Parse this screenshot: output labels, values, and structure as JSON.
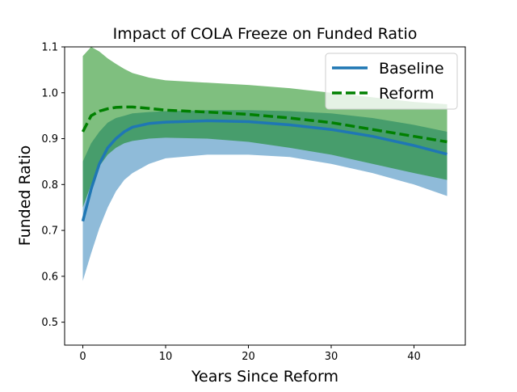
{
  "chart_data": {
    "type": "line",
    "title": "Impact of COLA Freeze on Funded Ratio",
    "xlabel": "Years Since Reform",
    "ylabel": "Funded Ratio",
    "xlim": [
      -2.2,
      46.2
    ],
    "ylim": [
      0.45,
      1.1
    ],
    "xticks": [
      0,
      10,
      20,
      30,
      40
    ],
    "yticks": [
      0.5,
      0.6,
      0.7,
      0.8,
      0.9,
      1.0,
      1.1
    ],
    "xtick_labels": [
      "0",
      "10",
      "20",
      "30",
      "40"
    ],
    "ytick_labels": [
      "0.5",
      "0.6",
      "0.7",
      "0.8",
      "0.9",
      "1.0",
      "1.1"
    ],
    "grid": false,
    "legend_position": "top-right",
    "legend": [
      "Baseline",
      "Reform"
    ],
    "x": [
      0,
      1,
      2,
      3,
      4,
      5,
      6,
      8,
      10,
      15,
      20,
      25,
      30,
      35,
      40,
      44
    ],
    "series": [
      {
        "name": "Baseline",
        "color": "#1f77b4",
        "line_style": "solid",
        "values": [
          0.72,
          0.79,
          0.845,
          0.88,
          0.9,
          0.915,
          0.925,
          0.933,
          0.936,
          0.939,
          0.937,
          0.93,
          0.92,
          0.905,
          0.885,
          0.866
        ],
        "band_upper": [
          0.85,
          0.89,
          0.915,
          0.935,
          0.945,
          0.95,
          0.955,
          0.958,
          0.96,
          0.962,
          0.962,
          0.96,
          0.955,
          0.945,
          0.93,
          0.915
        ],
        "band_lower": [
          0.59,
          0.65,
          0.705,
          0.75,
          0.785,
          0.81,
          0.825,
          0.845,
          0.857,
          0.865,
          0.865,
          0.86,
          0.845,
          0.825,
          0.8,
          0.775
        ],
        "band_color": "#1f77b4"
      },
      {
        "name": "Reform",
        "color": "#008000",
        "line_style": "dashed",
        "values": [
          0.915,
          0.95,
          0.96,
          0.965,
          0.968,
          0.969,
          0.969,
          0.966,
          0.962,
          0.958,
          0.953,
          0.945,
          0.935,
          0.92,
          0.905,
          0.893
        ],
        "band_upper": [
          1.08,
          1.1,
          1.09,
          1.075,
          1.063,
          1.052,
          1.043,
          1.033,
          1.027,
          1.022,
          1.017,
          1.01,
          1.0,
          0.99,
          0.98,
          0.975
        ],
        "band_lower": [
          0.75,
          0.8,
          0.84,
          0.865,
          0.88,
          0.89,
          0.895,
          0.9,
          0.902,
          0.9,
          0.893,
          0.88,
          0.865,
          0.845,
          0.825,
          0.81
        ],
        "band_color": "#008000"
      }
    ]
  }
}
